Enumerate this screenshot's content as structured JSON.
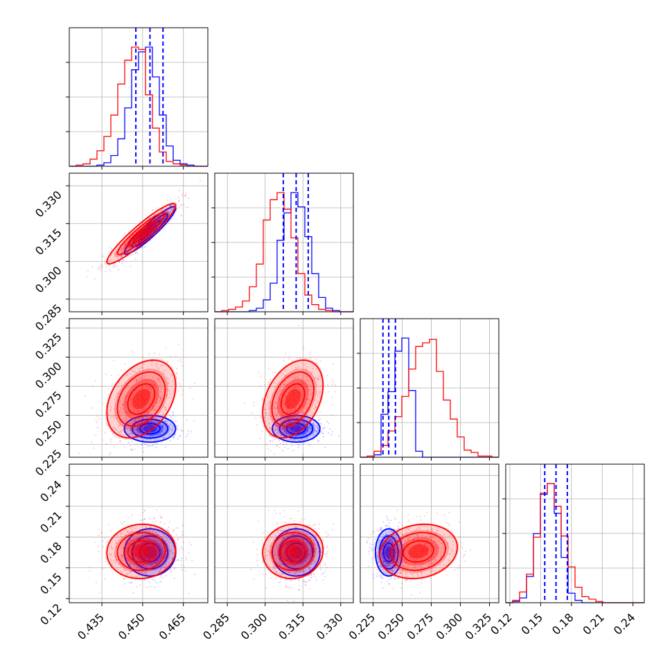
{
  "chart_data": {
    "type": "corner",
    "grid": true,
    "colors": {
      "first": "#0000ff",
      "second": "#ff0000"
    },
    "parameters": [
      {
        "ticks": [
          0.435,
          0.45,
          0.465
        ],
        "tick_labels": [
          "0.435",
          "0.450",
          "0.465"
        ],
        "range": [
          0.423,
          0.474
        ]
      },
      {
        "ticks": [
          0.285,
          0.3,
          0.315,
          0.33
        ],
        "tick_labels": [
          "0.285",
          "0.300",
          "0.315",
          "0.330"
        ],
        "range": [
          0.28,
          0.335
        ]
      },
      {
        "ticks": [
          0.225,
          0.25,
          0.275,
          0.3,
          0.325
        ],
        "tick_labels": [
          "0.225",
          "0.250",
          "0.275",
          "0.300",
          "0.325"
        ],
        "range": [
          0.214,
          0.333
        ]
      },
      {
        "ticks": [
          0.12,
          0.15,
          0.18,
          0.21,
          0.24
        ],
        "tick_labels": [
          "0.12",
          "0.15",
          "0.18",
          "0.21",
          "0.24"
        ],
        "range": [
          0.116,
          0.251
        ]
      }
    ],
    "histograms": [
      {
        "blue_quantiles": [
          0.4475,
          0.4527,
          0.4575
        ],
        "blue": {
          "edges_start": 0.423,
          "bin": 0.00255,
          "counts": [
            0,
            0,
            0,
            0,
            0.01,
            0.03,
            0.09,
            0.23,
            0.49,
            0.81,
            0.96,
            1.0,
            0.75,
            0.43,
            0.17,
            0.05,
            0.02,
            0.01,
            0,
            0
          ]
        },
        "red": {
          "edges_start": 0.423,
          "bin": 0.00255,
          "counts": [
            0,
            0.01,
            0.02,
            0.06,
            0.13,
            0.25,
            0.43,
            0.69,
            0.89,
            1.0,
            0.98,
            0.6,
            0.32,
            0.12,
            0.04,
            0.02,
            0.01,
            0,
            0,
            0
          ]
        }
      },
      {
        "blue_quantiles": [
          0.3072,
          0.3123,
          0.3171
        ],
        "blue": {
          "edges_start": 0.28,
          "bin": 0.00275,
          "counts": [
            0,
            0,
            0,
            0,
            0,
            0.01,
            0.03,
            0.1,
            0.24,
            0.6,
            0.83,
            1.0,
            0.88,
            0.63,
            0.32,
            0.12,
            0.03,
            0.01,
            0,
            0
          ]
        },
        "red": {
          "edges_start": 0.28,
          "bin": 0.00275,
          "counts": [
            0,
            0.01,
            0.02,
            0.04,
            0.09,
            0.21,
            0.4,
            0.77,
            0.94,
            1.0,
            0.86,
            0.62,
            0.32,
            0.14,
            0.06,
            0.02,
            0.01,
            0,
            0,
            0
          ]
        }
      },
      {
        "blue_quantiles": [
          0.2335,
          0.2385,
          0.2442
        ],
        "blue": {
          "edges_start": 0.214,
          "bin": 0.00595,
          "counts": [
            0,
            0,
            0.02,
            0.36,
            0.55,
            0.89,
            1.0,
            0.56,
            0.05,
            0,
            0,
            0,
            0,
            0,
            0,
            0,
            0,
            0,
            0,
            0
          ]
        },
        "red": {
          "edges_start": 0.214,
          "bin": 0.00595,
          "counts": [
            0,
            0.01,
            0.05,
            0.1,
            0.22,
            0.34,
            0.51,
            0.74,
            0.93,
            0.96,
            0.99,
            0.72,
            0.48,
            0.32,
            0.17,
            0.06,
            0.04,
            0.01,
            0.01,
            0
          ]
        }
      },
      {
        "blue_quantiles": [
          0.154,
          0.165,
          0.176
        ],
        "blue": {
          "edges_start": 0.116,
          "bin": 0.00675,
          "counts": [
            0,
            0.01,
            0.04,
            0.22,
            0.58,
            0.91,
            1.0,
            0.75,
            0.38,
            0.08,
            0.02,
            0,
            0,
            0,
            0,
            0,
            0,
            0,
            0,
            0
          ]
        },
        "red": {
          "edges_start": 0.116,
          "bin": 0.00675,
          "counts": [
            0,
            0.02,
            0.09,
            0.24,
            0.55,
            0.92,
            1.0,
            0.81,
            0.56,
            0.3,
            0.13,
            0.05,
            0.03,
            0.01,
            0,
            0,
            0,
            0,
            0,
            0
          ]
        }
      }
    ],
    "joint": [
      {
        "x": 0,
        "y": 1,
        "blue": {
          "mean": [
            0.4527,
            0.3123
          ],
          "sd": [
            0.0041,
            0.0041
          ],
          "rho": 0.93
        },
        "red": {
          "mean": [
            0.4495,
            0.311
          ],
          "sd": [
            0.0055,
            0.0052
          ],
          "rho": 0.93
        }
      },
      {
        "x": 0,
        "y": 2,
        "blue": {
          "mean": [
            0.4527,
            0.2385
          ],
          "sd": [
            0.0041,
            0.005
          ],
          "rho": 0.0
        },
        "red": {
          "mean": [
            0.4495,
            0.264
          ],
          "sd": [
            0.0055,
            0.0145
          ],
          "rho": 0.35
        }
      },
      {
        "x": 1,
        "y": 2,
        "blue": {
          "mean": [
            0.3123,
            0.2385
          ],
          "sd": [
            0.0041,
            0.005
          ],
          "rho": 0.0
        },
        "red": {
          "mean": [
            0.311,
            0.264
          ],
          "sd": [
            0.0052,
            0.0145
          ],
          "rho": 0.35
        }
      },
      {
        "x": 0,
        "y": 3,
        "blue": {
          "mean": [
            0.4527,
            0.165
          ],
          "sd": [
            0.0041,
            0.01
          ],
          "rho": 0.0
        },
        "red": {
          "mean": [
            0.4495,
            0.166
          ],
          "sd": [
            0.0055,
            0.0115
          ],
          "rho": 0.05
        }
      },
      {
        "x": 1,
        "y": 3,
        "blue": {
          "mean": [
            0.3123,
            0.165
          ],
          "sd": [
            0.0041,
            0.01
          ],
          "rho": 0.0
        },
        "red": {
          "mean": [
            0.311,
            0.166
          ],
          "sd": [
            0.0052,
            0.0115
          ],
          "rho": 0.05
        }
      },
      {
        "x": 2,
        "y": 3,
        "blue": {
          "mean": [
            0.2385,
            0.165
          ],
          "sd": [
            0.005,
            0.01
          ],
          "rho": 0.0
        },
        "red": {
          "mean": [
            0.264,
            0.166
          ],
          "sd": [
            0.0145,
            0.0115
          ],
          "rho": 0.15
        }
      }
    ]
  }
}
